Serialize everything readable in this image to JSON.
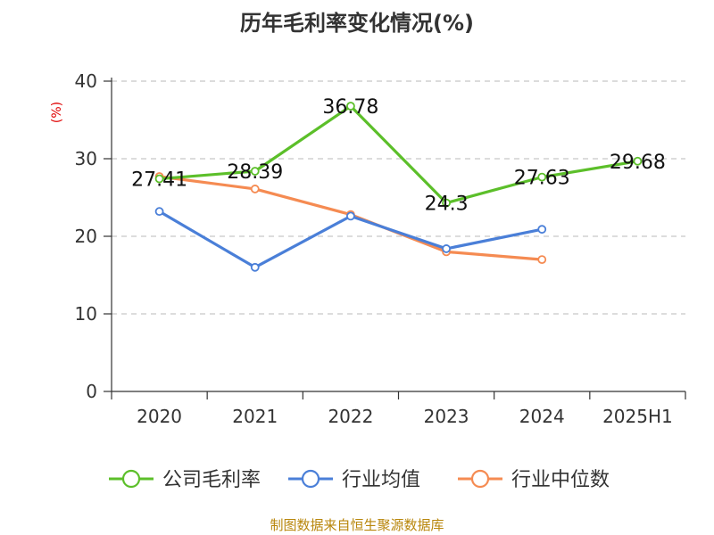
{
  "chart_data": {
    "type": "line",
    "title": "历年毛利率变化情况(%)",
    "ylabel": "(%)",
    "xlabel": "",
    "categories": [
      "2020",
      "2021",
      "2022",
      "2023",
      "2024",
      "2025H1"
    ],
    "ylim": [
      0,
      40
    ],
    "yticks": [
      "0",
      "10",
      "20",
      "30",
      "40"
    ],
    "grid": true,
    "legend_position": "bottom",
    "series": [
      {
        "name": "公司毛利率",
        "color": "#5cbf2a",
        "values": [
          27.41,
          28.39,
          36.78,
          24.3,
          27.63,
          29.68
        ],
        "labels": [
          "27.41",
          "28.39",
          "36.78",
          "24.3",
          "27.63",
          "29.68"
        ]
      },
      {
        "name": "行业均值",
        "color": "#4a7fd8",
        "values": [
          23.2,
          16.0,
          22.6,
          18.4,
          20.9,
          null
        ]
      },
      {
        "name": "行业中位数",
        "color": "#f58b52",
        "values": [
          27.7,
          26.1,
          22.8,
          18.0,
          17.0,
          null
        ]
      }
    ]
  },
  "source": "制图数据来自恒生聚源数据库"
}
